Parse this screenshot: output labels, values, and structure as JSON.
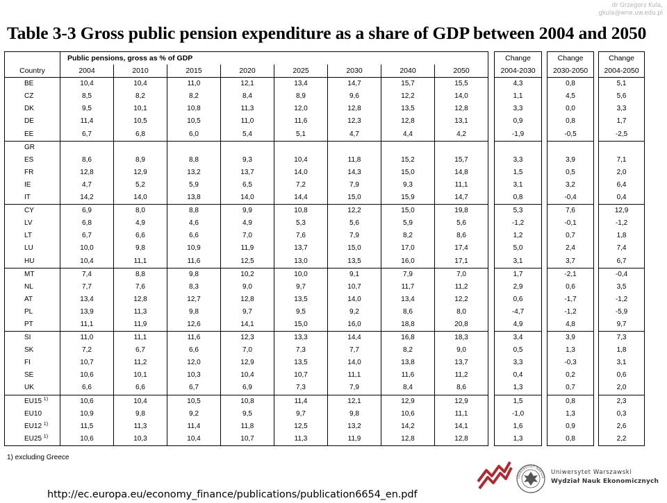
{
  "author": {
    "line1": "dr Grzegorz Kula,",
    "line2": "gkula@wne.uw.edu.pl"
  },
  "title": "Table 3-3 Gross public pension expenditure as a share of GDP between 2004 and 2050",
  "table": {
    "group_header": "Public pensions, gross as % of GDP",
    "change_label": "Change",
    "columns": [
      "Country",
      "2004",
      "2010",
      "2015",
      "2020",
      "2025",
      "2030",
      "2040",
      "2050",
      "2004-2030",
      "2030-2050",
      "2004-2050"
    ],
    "rows": [
      {
        "country": "BE",
        "values": [
          "10,4",
          "10,4",
          "11,0",
          "12,1",
          "13,4",
          "14,7",
          "15,7",
          "15,5",
          "4,3",
          "0,8",
          "5,1"
        ]
      },
      {
        "country": "CZ",
        "values": [
          "8,5",
          "8,2",
          "8,2",
          "8,4",
          "8,9",
          "9,6",
          "12,2",
          "14,0",
          "1,1",
          "4,5",
          "5,6"
        ]
      },
      {
        "country": "DK",
        "values": [
          "9,5",
          "10,1",
          "10,8",
          "11,3",
          "12,0",
          "12,8",
          "13,5",
          "12,8",
          "3,3",
          "0,0",
          "3,3"
        ]
      },
      {
        "country": "DE",
        "values": [
          "11,4",
          "10,5",
          "10,5",
          "11,0",
          "11,6",
          "12,3",
          "12,8",
          "13,1",
          "0,9",
          "0,8",
          "1,7"
        ]
      },
      {
        "country": "EE",
        "values": [
          "6,7",
          "6,8",
          "6,0",
          "5,4",
          "5,1",
          "4,7",
          "4,4",
          "4,2",
          "-1,9",
          "-0,5",
          "-2,5"
        ]
      },
      {
        "country": "GR",
        "values": [
          "",
          "",
          "",
          "",
          "",
          "",
          "",
          "",
          "",
          "",
          ""
        ],
        "group_start": true
      },
      {
        "country": "ES",
        "values": [
          "8,6",
          "8,9",
          "8,8",
          "9,3",
          "10,4",
          "11,8",
          "15,2",
          "15,7",
          "3,3",
          "3,9",
          "7,1"
        ]
      },
      {
        "country": "FR",
        "values": [
          "12,8",
          "12,9",
          "13,2",
          "13,7",
          "14,0",
          "14,3",
          "15,0",
          "14,8",
          "1,5",
          "0,5",
          "2,0"
        ]
      },
      {
        "country": "IE",
        "values": [
          "4,7",
          "5,2",
          "5,9",
          "6,5",
          "7,2",
          "7,9",
          "9,3",
          "11,1",
          "3,1",
          "3,2",
          "6,4"
        ]
      },
      {
        "country": "IT",
        "values": [
          "14,2",
          "14,0",
          "13,8",
          "14,0",
          "14,4",
          "15,0",
          "15,9",
          "14,7",
          "0,8",
          "-0,4",
          "0,4"
        ]
      },
      {
        "country": "CY",
        "values": [
          "6,9",
          "8,0",
          "8,8",
          "9,9",
          "10,8",
          "12,2",
          "15,0",
          "19,8",
          "5,3",
          "7,6",
          "12,9"
        ],
        "group_start": true
      },
      {
        "country": "LV",
        "values": [
          "6,8",
          "4,9",
          "4,6",
          "4,9",
          "5,3",
          "5,6",
          "5,9",
          "5,6",
          "-1,2",
          "-0,1",
          "-1,2"
        ]
      },
      {
        "country": "LT",
        "values": [
          "6,7",
          "6,6",
          "6,6",
          "7,0",
          "7,6",
          "7,9",
          "8,2",
          "8,6",
          "1,2",
          "0,7",
          "1,8"
        ]
      },
      {
        "country": "LU",
        "values": [
          "10,0",
          "9,8",
          "10,9",
          "11,9",
          "13,7",
          "15,0",
          "17,0",
          "17,4",
          "5,0",
          "2,4",
          "7,4"
        ]
      },
      {
        "country": "HU",
        "values": [
          "10,4",
          "11,1",
          "11,6",
          "12,5",
          "13,0",
          "13,5",
          "16,0",
          "17,1",
          "3,1",
          "3,7",
          "6,7"
        ]
      },
      {
        "country": "MT",
        "values": [
          "7,4",
          "8,8",
          "9,8",
          "10,2",
          "10,0",
          "9,1",
          "7,9",
          "7,0",
          "1,7",
          "-2,1",
          "-0,4"
        ],
        "group_start": true
      },
      {
        "country": "NL",
        "values": [
          "7,7",
          "7,6",
          "8,3",
          "9,0",
          "9,7",
          "10,7",
          "11,7",
          "11,2",
          "2,9",
          "0,6",
          "3,5"
        ]
      },
      {
        "country": "AT",
        "values": [
          "13,4",
          "12,8",
          "12,7",
          "12,8",
          "13,5",
          "14,0",
          "13,4",
          "12,2",
          "0,6",
          "-1,7",
          "-1,2"
        ]
      },
      {
        "country": "PL",
        "values": [
          "13,9",
          "11,3",
          "9,8",
          "9,7",
          "9,5",
          "9,2",
          "8,6",
          "8,0",
          "-4,7",
          "-1,2",
          "-5,9"
        ]
      },
      {
        "country": "PT",
        "values": [
          "11,1",
          "11,9",
          "12,6",
          "14,1",
          "15,0",
          "16,0",
          "18,8",
          "20,8",
          "4,9",
          "4,8",
          "9,7"
        ]
      },
      {
        "country": "SI",
        "values": [
          "11,0",
          "11,1",
          "11,6",
          "12,3",
          "13,3",
          "14,4",
          "16,8",
          "18,3",
          "3,4",
          "3,9",
          "7,3"
        ],
        "group_start": true
      },
      {
        "country": "SK",
        "values": [
          "7,2",
          "6,7",
          "6,6",
          "7,0",
          "7,3",
          "7,7",
          "8,2",
          "9,0",
          "0,5",
          "1,3",
          "1,8"
        ]
      },
      {
        "country": "FI",
        "values": [
          "10,7",
          "11,2",
          "12,0",
          "12,9",
          "13,5",
          "14,0",
          "13,8",
          "13,7",
          "3,3",
          "-0,3",
          "3,1"
        ]
      },
      {
        "country": "SE",
        "values": [
          "10,6",
          "10,1",
          "10,3",
          "10,4",
          "10,7",
          "11,1",
          "11,6",
          "11,2",
          "0,4",
          "0,2",
          "0,6"
        ]
      },
      {
        "country": "UK",
        "values": [
          "6,6",
          "6,6",
          "6,7",
          "6,9",
          "7,3",
          "7,9",
          "8,4",
          "8,6",
          "1,3",
          "0,7",
          "2,0"
        ]
      },
      {
        "country": "EU15",
        "sup": "1)",
        "values": [
          "10,6",
          "10,4",
          "10,5",
          "10,8",
          "11,4",
          "12,1",
          "12,9",
          "12,9",
          "1,5",
          "0,8",
          "2,3"
        ],
        "group_start": true
      },
      {
        "country": "EU10",
        "values": [
          "10,9",
          "9,8",
          "9,2",
          "9,5",
          "9,7",
          "9,8",
          "10,6",
          "11,1",
          "-1,0",
          "1,3",
          "0,3"
        ]
      },
      {
        "country": "EU12",
        "sup": "1)",
        "values": [
          "11,5",
          "11,3",
          "11,4",
          "11,8",
          "12,5",
          "13,2",
          "14,2",
          "14,1",
          "1,6",
          "0,9",
          "2,6"
        ]
      },
      {
        "country": "EU25",
        "sup": "1)",
        "values": [
          "10,6",
          "10,3",
          "10,4",
          "10,7",
          "11,3",
          "11,9",
          "12,8",
          "12,8",
          "1,3",
          "0,8",
          "2,2"
        ]
      }
    ]
  },
  "footnote": "1) excluding Greece",
  "source_url": "http://ec.europa.eu/economy_finance/publications/publication6654_en.pdf",
  "university": {
    "line1": "Uniwersytet Warszawski",
    "line2": "Wydział Nauk Ekonomicznych"
  },
  "seal_text": "UNIWERSYTET WARSZAWSKI",
  "colors": {
    "wave_logo": "#b02a30",
    "seal": "#555555"
  },
  "icons": {
    "logo": "wne-wave-logo",
    "seal": "university-seal-icon"
  }
}
